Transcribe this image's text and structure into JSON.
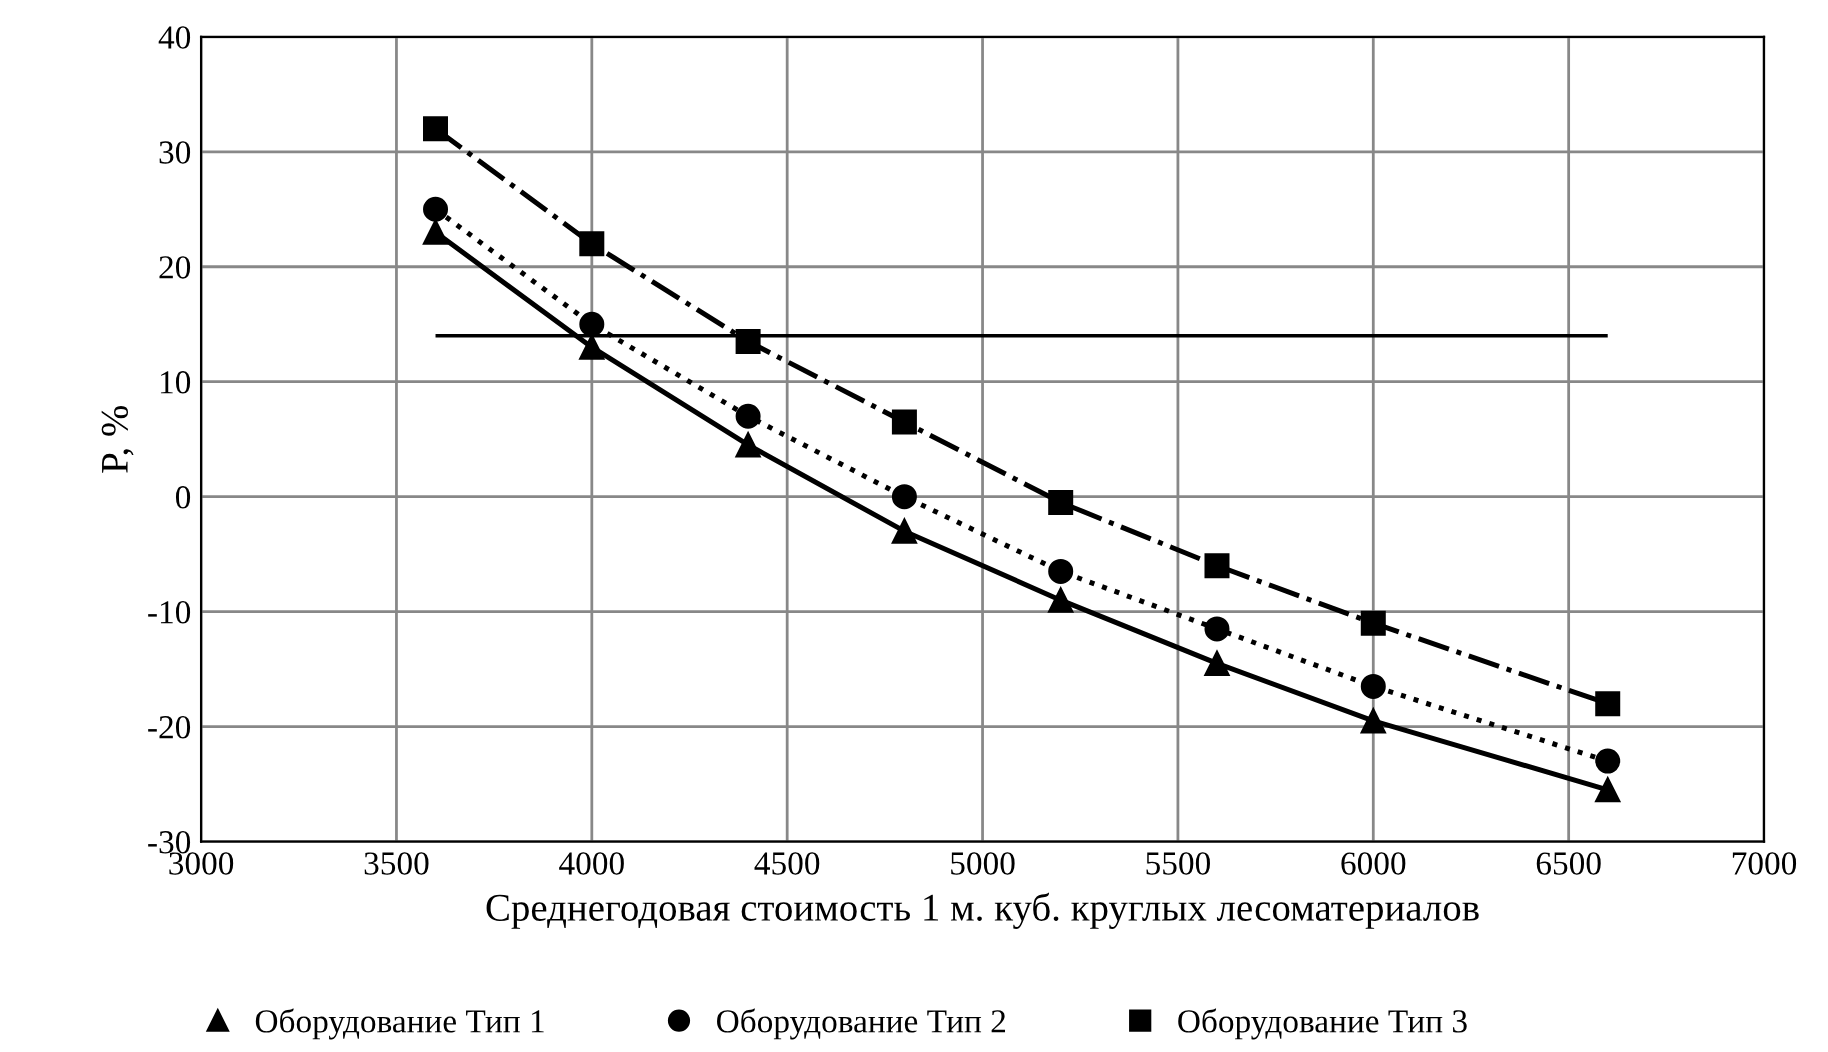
{
  "chart_data": {
    "type": "line",
    "xlabel": "Среднегодовая стоимость 1 м. куб. круглых лесоматериалов",
    "ylabel": "P, %",
    "x": [
      3600,
      4000,
      4400,
      4800,
      5200,
      5600,
      6000,
      6600
    ],
    "series": [
      {
        "name": "Оборудование Тип 1",
        "color": "#000000",
        "marker": "triangle",
        "line_style": "solid",
        "values": [
          23,
          13,
          4.5,
          -3,
          -9,
          -14.5,
          -19.5,
          -25.5
        ]
      },
      {
        "name": "Оборудование Тип 2",
        "color": "#000000",
        "marker": "circle",
        "line_style": "dotted",
        "values": [
          25,
          15,
          7,
          0,
          -6.5,
          -11.5,
          -16.5,
          -23
        ]
      },
      {
        "name": "Оборудование Тип 3",
        "color": "#000000",
        "marker": "square",
        "line_style": "dashdot",
        "values": [
          32,
          22,
          13.5,
          6.5,
          -0.5,
          -6,
          -11,
          -18
        ]
      }
    ],
    "ref_lines": [
      {
        "axis": "y",
        "value": 14,
        "color": "#000000",
        "line_style": "solid"
      }
    ],
    "xlim": [
      3000,
      7000
    ],
    "xticks": [
      3000,
      3500,
      4000,
      4500,
      5000,
      5500,
      6000,
      6500,
      7000
    ],
    "ylim": [
      -30,
      40
    ],
    "yticks": [
      -30,
      -20,
      -10,
      0,
      10,
      20,
      30,
      40
    ],
    "grid": true,
    "legend": "bottom"
  }
}
